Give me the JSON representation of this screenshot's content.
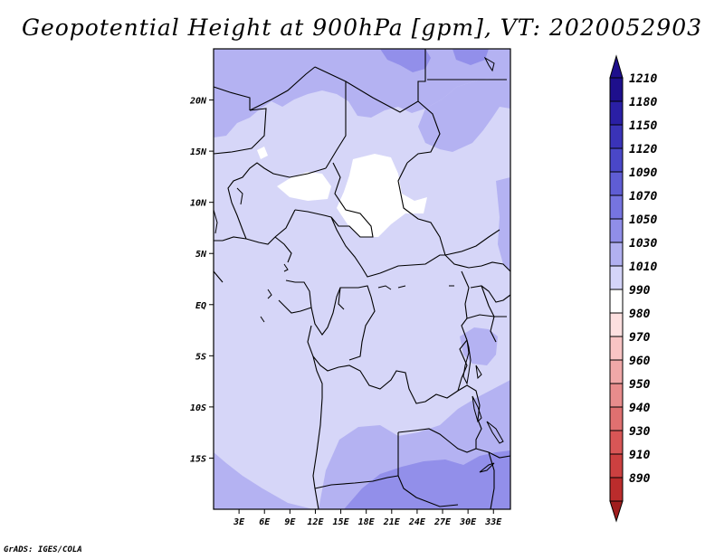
{
  "title": "Geopotential Height at 900hPa [gpm], VT: 2020052903",
  "footer": "GrADS: IGES/COLA",
  "map": {
    "lat_range": [
      -20,
      25
    ],
    "lon_range": [
      0,
      35
    ],
    "lat_ticks": [
      {
        "value": 20,
        "label": "20N"
      },
      {
        "value": 15,
        "label": "15N"
      },
      {
        "value": 10,
        "label": "10N"
      },
      {
        "value": 5,
        "label": "5N"
      },
      {
        "value": 0,
        "label": "EQ"
      },
      {
        "value": -5,
        "label": "5S"
      },
      {
        "value": -10,
        "label": "10S"
      },
      {
        "value": -15,
        "label": "15S"
      }
    ],
    "lon_ticks": [
      {
        "value": 3,
        "label": "3E"
      },
      {
        "value": 6,
        "label": "6E"
      },
      {
        "value": 9,
        "label": "9E"
      },
      {
        "value": 12,
        "label": "12E"
      },
      {
        "value": 15,
        "label": "15E"
      },
      {
        "value": 18,
        "label": "18E"
      },
      {
        "value": 21,
        "label": "21E"
      },
      {
        "value": 24,
        "label": "24E"
      },
      {
        "value": 27,
        "label": "27E"
      },
      {
        "value": 30,
        "label": "30E"
      },
      {
        "value": 33,
        "label": "33E"
      }
    ]
  },
  "colorbar": {
    "levels": [
      {
        "label": "1210",
        "color": "#1e0f8c"
      },
      {
        "label": "1180",
        "color": "#2a1fa5"
      },
      {
        "label": "1150",
        "color": "#3a33b8"
      },
      {
        "label": "1120",
        "color": "#4a47c8"
      },
      {
        "label": "1090",
        "color": "#5f5dd4"
      },
      {
        "label": "1070",
        "color": "#7674e0"
      },
      {
        "label": "1050",
        "color": "#908ee8"
      },
      {
        "label": "1030",
        "color": "#b1b0f0"
      },
      {
        "label": "1010",
        "color": "#d4d4f8"
      },
      {
        "label": "990",
        "color": "#ffffff"
      },
      {
        "label": "980",
        "color": "#fde0e0"
      },
      {
        "label": "970",
        "color": "#f8c4c4"
      },
      {
        "label": "960",
        "color": "#f0a8a8"
      },
      {
        "label": "950",
        "color": "#e88c8c"
      },
      {
        "label": "940",
        "color": "#e07070"
      },
      {
        "label": "930",
        "color": "#d85656"
      },
      {
        "label": "910",
        "color": "#cc4040"
      },
      {
        "label": "890",
        "color": "#bb2c2c"
      }
    ],
    "bottom_tip_color": "#a01e1e"
  },
  "palette": {
    "c1010": "#d6d6f8",
    "c1030": "#b4b2f2",
    "c1050": "#928fea",
    "c990": "#ffffff"
  }
}
